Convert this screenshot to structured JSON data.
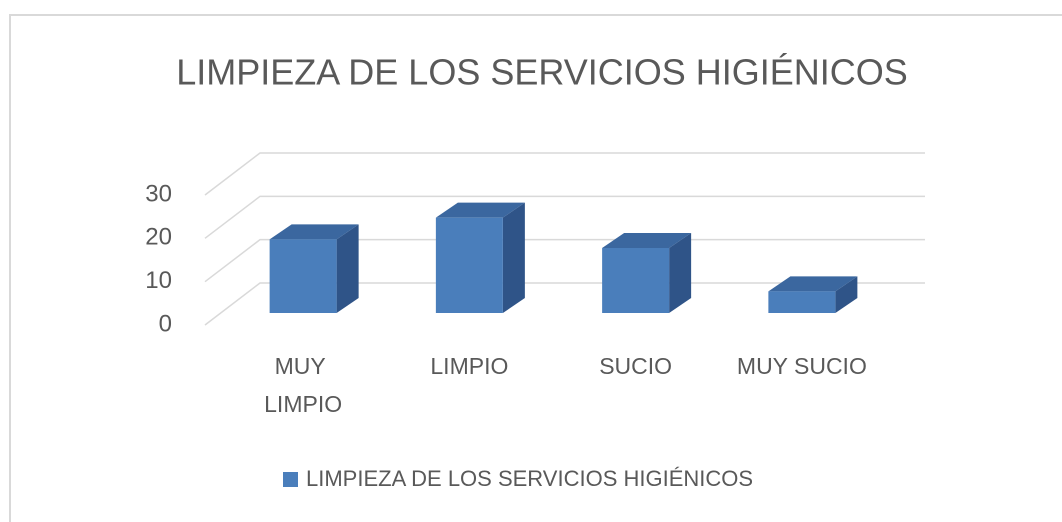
{
  "chart_data": {
    "type": "bar3d",
    "title": "LIMPIEZA DE LOS SERVICIOS HIGIÉNICOS",
    "categories": [
      "MUY LIMPIO",
      "LIMPIO",
      "SUCIO",
      "MUY SUCIO"
    ],
    "series": [
      {
        "name": "LIMPIEZA DE LOS SERVICIOS HIGIÉNICOS",
        "color": "#4a7ebb",
        "values": [
          17,
          22,
          15,
          5
        ]
      }
    ],
    "ylim": [
      0,
      30
    ],
    "yticks": [
      0,
      10,
      20,
      30
    ],
    "grid": true,
    "legend": "bottom"
  }
}
